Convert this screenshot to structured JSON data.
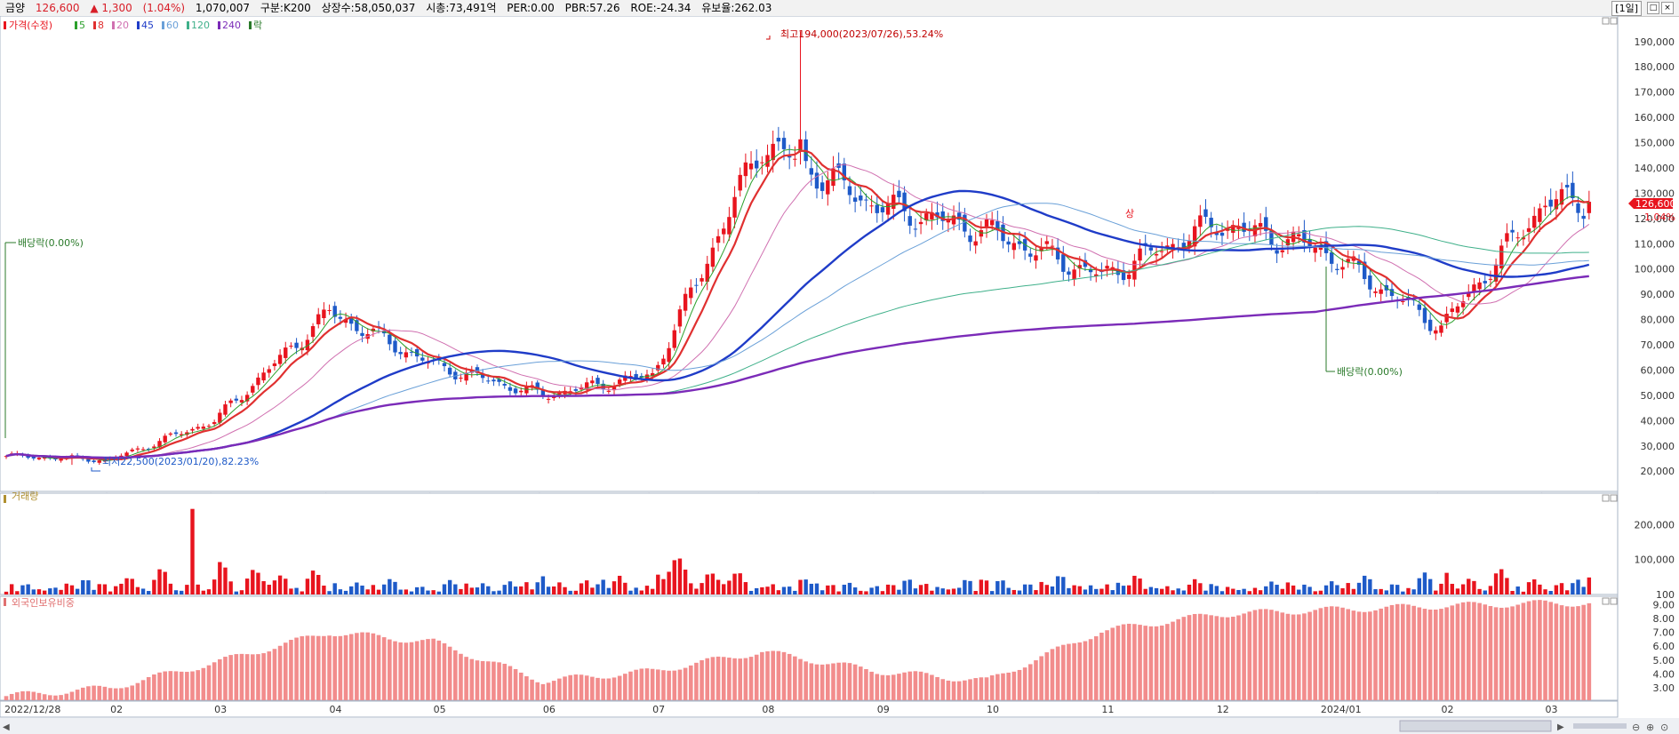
{
  "header": {
    "name": "금양",
    "price": "126,600",
    "change": "▲ 1,300",
    "change_pct": "(1.04%)",
    "volume": "1,070,007",
    "category": "구분:K200",
    "listed": "상장수:58,050,037",
    "market_cap": "시총:73,491억",
    "per": "PER:0.00",
    "pbr": "PBR:57.26",
    "roe": "ROE:-24.34",
    "retention": "유보율:262.03",
    "period": "[1일]"
  },
  "legend": {
    "price_label": "가격(수정)",
    "ma": [
      {
        "label": "5",
        "color": "#2ca02c"
      },
      {
        "label": "8",
        "color": "#e03030"
      },
      {
        "label": "20",
        "color": "#d070b0"
      },
      {
        "label": "45",
        "color": "#1f3cc8"
      },
      {
        "label": "60",
        "color": "#6aa0d8"
      },
      {
        "label": "120",
        "color": "#3fb08a"
      },
      {
        "label": "240",
        "color": "#7b2bb8"
      }
    ],
    "ex_label": "락",
    "volume_label": "거래량",
    "foreign_label": "외국인보유비중"
  },
  "annotations": {
    "high": "최고194,000(2023/07/26),53.24%",
    "low": "최저22,500(2023/01/20),82.23%",
    "dividend1": "배당락(0.00%)",
    "dividend2": "배당락(0.00%)",
    "limit_up": "상",
    "current_price": "126,600",
    "current_pct": "1.04%"
  },
  "colors": {
    "up": "#e8141e",
    "down": "#1e5ac8",
    "foreign_bar": "#f28c8c"
  },
  "chart_data": [
    {
      "type": "candlestick",
      "title": "가격(수정)",
      "x_ticks": [
        "2022/12/28",
        "02",
        "03",
        "04",
        "05",
        "06",
        "07",
        "08",
        "09",
        "10",
        "11",
        "12",
        "2024/01",
        "02",
        "03"
      ],
      "y_ticks": [
        20000,
        30000,
        40000,
        50000,
        60000,
        70000,
        80000,
        90000,
        100000,
        110000,
        120000,
        130000,
        140000,
        150000,
        160000,
        170000,
        180000,
        190000
      ],
      "y_tick_labels": [
        "20,000",
        "30,000",
        "40,000",
        "50,000",
        "60,000",
        "70,000",
        "80,000",
        "90,000",
        "100,000",
        "110,000",
        "120,000",
        "130,000",
        "140,000",
        "150,000",
        "160,000",
        "170,000",
        "180,000",
        "190,000"
      ],
      "ylim": [
        12000,
        198000
      ],
      "grid": true,
      "series": [
        {
          "name": "가격(수정)",
          "close_monthly": [
            {
              "x": "2022/12/28",
              "close": 26000
            },
            {
              "x": "02",
              "close": 24500
            },
            {
              "x": "03",
              "close": 40000
            },
            {
              "x": "04",
              "close": 83000
            },
            {
              "x": "05",
              "close": 62000
            },
            {
              "x": "06",
              "close": 50000
            },
            {
              "x": "07",
              "close": 58000
            },
            {
              "x": "08",
              "close": 150000
            },
            {
              "x": "09",
              "close": 125000
            },
            {
              "x": "10",
              "close": 115000
            },
            {
              "x": "11",
              "close": 97000
            },
            {
              "x": "12",
              "close": 118000
            },
            {
              "x": "2024/01",
              "close": 108000
            },
            {
              "x": "02",
              "close": 77000
            },
            {
              "x": "03",
              "close": 126600
            }
          ]
        }
      ],
      "high": 194000,
      "low": 22500,
      "last": 126600
    },
    {
      "type": "bar",
      "title": "거래량",
      "y_ticks": [
        100,
        100000,
        200000
      ],
      "y_tick_labels": [
        "100",
        "100,000",
        "200,000"
      ],
      "ylim": [
        0,
        290000
      ],
      "peak": 245000
    },
    {
      "type": "bar",
      "title": "외국인보유비중",
      "y_ticks": [
        3,
        4,
        5,
        6,
        7,
        8,
        9
      ],
      "y_tick_labels": [
        "3.00",
        "4.00",
        "5.00",
        "6.00",
        "7.00",
        "8.00",
        "9.00"
      ],
      "ylim": [
        2.1,
        9.6
      ],
      "monthly": [
        {
          "x": "2022/12/28",
          "value": 2.4
        },
        {
          "x": "02",
          "value": 3.0
        },
        {
          "x": "03",
          "value": 4.8
        },
        {
          "x": "04",
          "value": 7.0
        },
        {
          "x": "05",
          "value": 6.3
        },
        {
          "x": "06",
          "value": 3.5
        },
        {
          "x": "07",
          "value": 4.2
        },
        {
          "x": "08",
          "value": 5.6
        },
        {
          "x": "09",
          "value": 4.2
        },
        {
          "x": "10",
          "value": 3.5
        },
        {
          "x": "11",
          "value": 7.1
        },
        {
          "x": "12",
          "value": 8.3
        },
        {
          "x": "2024/01",
          "value": 8.6
        },
        {
          "x": "02",
          "value": 8.9
        },
        {
          "x": "03",
          "value": 9.1
        }
      ]
    }
  ]
}
